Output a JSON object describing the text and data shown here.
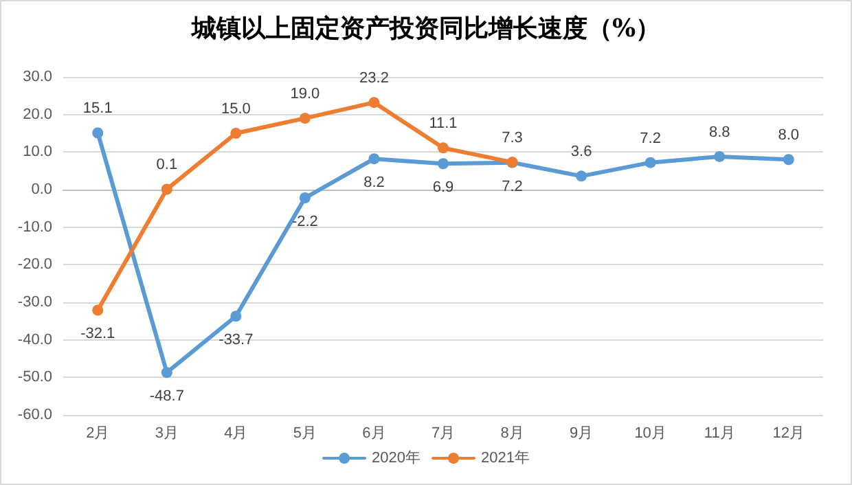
{
  "chart_data": {
    "type": "line",
    "title": "城镇以上固定资产投资同比增长速度（%）",
    "categories": [
      "2月",
      "3月",
      "4月",
      "5月",
      "6月",
      "7月",
      "8月",
      "9月",
      "10月",
      "11月",
      "12月"
    ],
    "series": [
      {
        "name": "2020年",
        "color": "#5b9bd5",
        "values": [
          15.1,
          -48.7,
          -33.7,
          -2.2,
          8.2,
          6.9,
          7.2,
          3.6,
          7.2,
          8.8,
          8.0
        ],
        "value_labels": [
          "15.1",
          "-48.7",
          "-33.7",
          "-2.2",
          "8.2",
          "6.9",
          "7.2",
          "3.6",
          "7.2",
          "8.8",
          "8.0"
        ]
      },
      {
        "name": "2021年",
        "color": "#ed7d31",
        "values": [
          -32.1,
          0.1,
          15.0,
          19.0,
          23.2,
          11.1,
          7.3,
          null,
          null,
          null,
          null
        ],
        "value_labels": [
          "-32.1",
          "0.1",
          "15.0",
          "19.0",
          "23.2",
          "11.1",
          "7.3",
          null,
          null,
          null,
          null
        ]
      }
    ],
    "ylim": [
      -60,
      30
    ],
    "yticks": [
      {
        "value": 30,
        "label": "30.0"
      },
      {
        "value": 20,
        "label": "20.0"
      },
      {
        "value": 10,
        "label": "10.0"
      },
      {
        "value": 0,
        "label": "0.0"
      },
      {
        "value": -10,
        "label": "-10.0"
      },
      {
        "value": -20,
        "label": "-20.0"
      },
      {
        "value": -30,
        "label": "-30.0"
      },
      {
        "value": -40,
        "label": "-40.0"
      },
      {
        "value": -50,
        "label": "-50.0"
      },
      {
        "value": -60,
        "label": "-60.0"
      }
    ],
    "grid": "y",
    "legend": "bottom",
    "marker": "circle",
    "line_style": "solid"
  }
}
